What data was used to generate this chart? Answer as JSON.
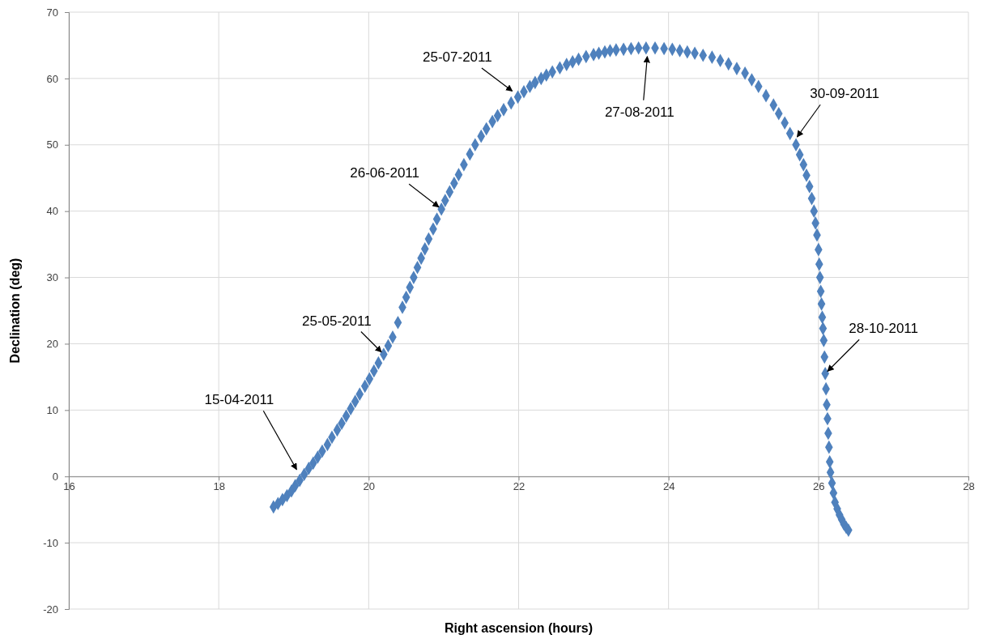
{
  "chart_data": {
    "type": "scatter",
    "xlabel": "Right ascension (hours)",
    "ylabel": "Declination (deg)",
    "xlim": [
      16,
      28
    ],
    "xticks": [
      16,
      18,
      20,
      22,
      24,
      26,
      28
    ],
    "ylim": [
      -20,
      70
    ],
    "yticks": [
      -20,
      -10,
      0,
      10,
      20,
      30,
      40,
      50,
      60,
      70
    ],
    "grid": true,
    "marker": "diamond",
    "series": [
      {
        "color": "#4f81bd",
        "x": [
          18.73,
          18.79,
          18.85,
          18.91,
          18.97,
          19.02,
          19.08,
          19.14,
          19.2,
          19.26,
          19.32,
          19.38,
          19.45,
          19.51,
          19.58,
          19.64,
          19.7,
          19.76,
          19.82,
          19.88,
          19.95,
          20.01,
          20.07,
          20.13,
          20.2,
          20.26,
          20.32,
          20.39,
          20.45,
          20.5,
          20.55,
          20.6,
          20.65,
          20.7,
          20.75,
          20.8,
          20.86,
          20.91,
          20.97,
          21.02,
          21.08,
          21.14,
          21.2,
          21.27,
          21.35,
          21.42,
          21.5,
          21.57,
          21.65,
          21.72,
          21.8,
          21.9,
          21.99,
          22.07,
          22.15,
          22.22,
          22.3,
          22.37,
          22.45,
          22.55,
          22.64,
          22.72,
          22.8,
          22.9,
          23.0,
          23.07,
          23.15,
          23.22,
          23.3,
          23.4,
          23.5,
          23.6,
          23.7,
          23.82,
          23.94,
          24.05,
          24.15,
          24.25,
          24.35,
          24.46,
          24.58,
          24.69,
          24.8,
          24.91,
          25.02,
          25.11,
          25.2,
          25.3,
          25.4,
          25.47,
          25.55,
          25.62,
          25.7,
          25.75,
          25.8,
          25.84,
          25.88,
          25.91,
          25.94,
          25.96,
          25.98,
          26.0,
          26.01,
          26.02,
          26.03,
          26.04,
          26.05,
          26.06,
          26.07,
          26.08,
          26.09,
          26.1,
          26.11,
          26.12,
          26.13,
          26.14,
          26.15,
          26.16,
          26.18,
          26.2,
          26.22,
          26.25,
          26.28,
          26.31,
          26.34,
          26.37,
          26.4
        ],
        "values": [
          -4.6,
          -4.1,
          -3.5,
          -2.9,
          -2.2,
          -1.4,
          -0.6,
          0.3,
          1.2,
          2.0,
          2.9,
          3.8,
          4.8,
          5.9,
          7.0,
          8.0,
          9.1,
          10.2,
          11.3,
          12.4,
          13.6,
          14.7,
          15.9,
          17.1,
          18.4,
          19.7,
          21.0,
          23.2,
          25.5,
          27.0,
          28.5,
          30.0,
          31.5,
          32.9,
          34.3,
          35.8,
          37.3,
          38.8,
          40.3,
          41.6,
          42.9,
          44.2,
          45.5,
          47.0,
          48.6,
          50.0,
          51.3,
          52.4,
          53.5,
          54.4,
          55.3,
          56.3,
          57.2,
          58.0,
          58.8,
          59.4,
          60.0,
          60.5,
          61.0,
          61.6,
          62.1,
          62.5,
          62.9,
          63.3,
          63.6,
          63.8,
          64.0,
          64.2,
          64.3,
          64.4,
          64.5,
          64.6,
          64.6,
          64.6,
          64.5,
          64.4,
          64.2,
          64.0,
          63.8,
          63.5,
          63.2,
          62.7,
          62.2,
          61.5,
          60.8,
          59.8,
          58.8,
          57.4,
          56.0,
          54.7,
          53.3,
          51.7,
          50.0,
          48.5,
          47.0,
          45.4,
          43.7,
          41.9,
          40.0,
          38.2,
          36.4,
          34.2,
          32.0,
          30.0,
          27.9,
          26.0,
          24.0,
          22.3,
          20.5,
          18.0,
          15.5,
          13.2,
          10.8,
          8.7,
          6.5,
          4.4,
          2.2,
          0.6,
          -1.0,
          -2.5,
          -3.9,
          -4.9,
          -5.8,
          -6.5,
          -7.2,
          -7.7,
          -8.1
        ]
      }
    ],
    "annotations": [
      {
        "text": "15-04-2011",
        "x": 19.06,
        "y": 0.6
      },
      {
        "text": "25-05-2011",
        "x": 20.2,
        "y": 18.4
      },
      {
        "text": "26-06-2011",
        "x": 20.97,
        "y": 40.3
      },
      {
        "text": "25-07-2011",
        "x": 21.95,
        "y": 57.8
      },
      {
        "text": "27-08-2011",
        "x": 23.72,
        "y": 63.8
      },
      {
        "text": "30-09-2011",
        "x": 25.69,
        "y": 50.8
      },
      {
        "text": "28-10-2011",
        "x": 26.09,
        "y": 15.5
      }
    ]
  }
}
